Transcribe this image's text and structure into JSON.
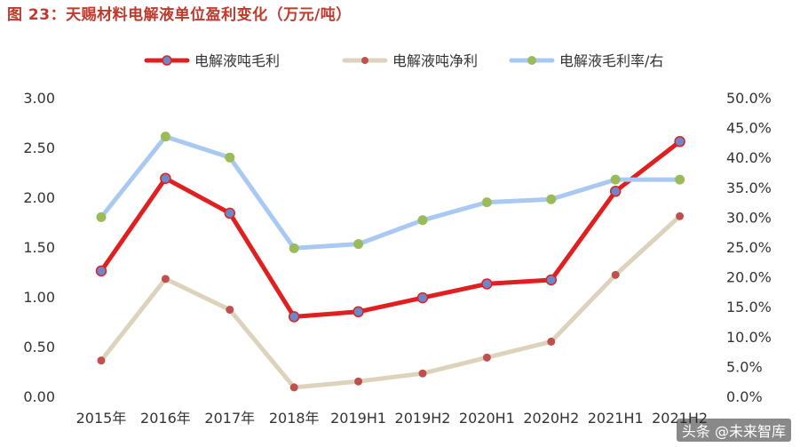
{
  "chart_data": {
    "type": "line",
    "title": "图 23：天赐材料电解液单位盈利变化（万元/吨）",
    "categories": [
      "2015年",
      "2016年",
      "2017年",
      "2018年",
      "2019H1",
      "2019H2",
      "2020H1",
      "2020H2",
      "2021H1",
      "2021H2"
    ],
    "y_left": {
      "ticks": [
        "0.00",
        "0.50",
        "1.00",
        "1.50",
        "2.00",
        "2.50",
        "3.00"
      ],
      "ylim": [
        0,
        3
      ]
    },
    "y_right": {
      "ticks": [
        "0.0%",
        "5.0%",
        "10.0%",
        "15.0%",
        "20.0%",
        "25.0%",
        "30.0%",
        "35.0%",
        "40.0%",
        "45.0%",
        "50.0%"
      ],
      "ylim": [
        0,
        50
      ]
    },
    "series": [
      {
        "name": "电解液吨毛利",
        "axis": "left",
        "color": "#e02020",
        "marker_color": "#6f86c8",
        "values": [
          1.26,
          2.19,
          1.84,
          0.8,
          0.85,
          0.99,
          1.13,
          1.17,
          2.06,
          2.56
        ]
      },
      {
        "name": "电解液吨净利",
        "axis": "left",
        "color": "#ddd3bd",
        "marker_color": "#c0504d",
        "values": [
          0.36,
          1.18,
          0.87,
          0.09,
          0.15,
          0.23,
          0.39,
          0.55,
          1.22,
          1.81
        ]
      },
      {
        "name": "电解液毛利率/右",
        "axis": "right",
        "color": "#a9c9f3",
        "marker_color": "#9bbb59",
        "values": [
          30.0,
          43.5,
          40.0,
          24.8,
          25.5,
          29.5,
          32.5,
          33.0,
          36.3,
          36.3
        ]
      }
    ]
  },
  "watermark": "头条 @未来智库"
}
